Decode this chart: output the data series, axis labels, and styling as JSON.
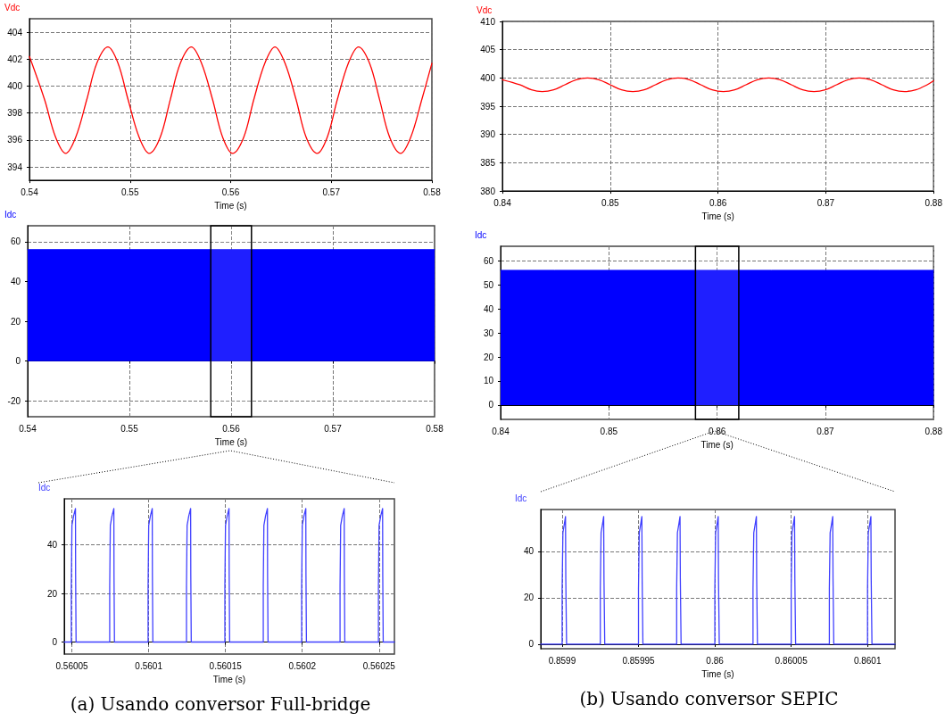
{
  "chart_data": [
    {
      "type": "line",
      "xlabel": "Time (s)",
      "legend": "top left",
      "grid": true,
      "line_style": "solid",
      "xlim": [
        0.54,
        0.58
      ],
      "xticks": [
        0.54,
        0.55,
        0.56,
        0.57,
        0.58
      ],
      "ylim": [
        393,
        405
      ],
      "yticks": [
        394,
        396,
        398,
        400,
        402,
        404
      ],
      "series": [
        {
          "name": "Vdc",
          "color": "#ff0000",
          "x": [
            0.54,
            0.5415,
            0.5426,
            0.5436,
            0.5446,
            0.5457,
            0.5467,
            0.5478,
            0.5488,
            0.5498,
            0.5509,
            0.5519,
            0.553,
            0.554,
            0.555,
            0.5561,
            0.5571,
            0.5582,
            0.5592,
            0.5602,
            0.5613,
            0.5623,
            0.5634,
            0.5644,
            0.5654,
            0.5665,
            0.5675,
            0.5686,
            0.5696,
            0.5706,
            0.5717,
            0.5727,
            0.5738,
            0.5748,
            0.5758,
            0.5769,
            0.5779,
            0.579,
            0.58
          ],
          "values": [
            402.2,
            399.0,
            396.2,
            395.0,
            396.2,
            399.0,
            401.7,
            402.9,
            401.7,
            399.0,
            396.2,
            395.0,
            396.2,
            399.0,
            401.7,
            402.9,
            401.7,
            399.0,
            396.2,
            395.0,
            396.2,
            399.0,
            401.7,
            402.9,
            401.7,
            399.0,
            396.2,
            395.0,
            396.2,
            399.0,
            401.7,
            402.9,
            401.7,
            399.0,
            396.2,
            395.0,
            396.2,
            399.0,
            401.7
          ]
        }
      ]
    },
    {
      "type": "line",
      "xlabel": "Time (s)",
      "legend": "top left",
      "grid": true,
      "line_style": "solid",
      "xlim": [
        0.84,
        0.88
      ],
      "xticks": [
        0.84,
        0.85,
        0.86,
        0.87,
        0.88
      ],
      "ylim": [
        380,
        410
      ],
      "yticks": [
        380,
        385,
        390,
        395,
        400,
        405,
        410
      ],
      "series": [
        {
          "name": "Vdc",
          "color": "#ff0000",
          "x": [
            0.84,
            0.8416,
            0.8427,
            0.8437,
            0.84475,
            0.8458,
            0.84685,
            0.8479,
            0.84895,
            0.85,
            0.85105,
            0.8521,
            0.85315,
            0.8542,
            0.85525,
            0.8563,
            0.85735,
            0.8584,
            0.85945,
            0.8605,
            0.86155,
            0.8626,
            0.86365,
            0.8647,
            0.86575,
            0.8668,
            0.86785,
            0.8689,
            0.86995,
            0.871,
            0.87205,
            0.8731,
            0.87415,
            0.8752,
            0.87625,
            0.8773,
            0.87835,
            0.8794,
            0.88
          ],
          "values": [
            399.7,
            398.8,
            397.9,
            397.6,
            397.9,
            398.8,
            399.7,
            400.0,
            399.7,
            398.8,
            397.9,
            397.6,
            397.9,
            398.8,
            399.7,
            400.0,
            399.7,
            398.8,
            397.9,
            397.6,
            397.9,
            398.8,
            399.7,
            400.0,
            399.7,
            398.8,
            397.9,
            397.6,
            397.9,
            398.8,
            399.7,
            400.0,
            399.7,
            398.8,
            397.9,
            397.6,
            397.9,
            398.8,
            399.5
          ]
        }
      ]
    },
    {
      "type": "area",
      "xlabel": "Time (s)",
      "legend": "top left",
      "grid": true,
      "xlim": [
        0.54,
        0.58
      ],
      "xticks": [
        0.54,
        0.55,
        0.56,
        0.57,
        0.58
      ],
      "ylim": [
        -28,
        68
      ],
      "yticks": [
        -20,
        0,
        20,
        40,
        60
      ],
      "bands": [
        {
          "axis": "x",
          "from": 0.558,
          "to": 0.562,
          "color": "#000000"
        }
      ],
      "series": [
        {
          "name": "Idc",
          "color": "#0000ff",
          "x": [
            0.54,
            0.545,
            0.55,
            0.555,
            0.565,
            0.57,
            0.575,
            0.58
          ],
          "values": [
            56,
            56,
            56,
            56,
            56,
            56,
            56,
            56
          ]
        }
      ]
    },
    {
      "type": "area",
      "xlabel": "Time (s)",
      "legend": "top left",
      "grid": true,
      "xlim": [
        0.84,
        0.88
      ],
      "xticks": [
        0.84,
        0.85,
        0.86,
        0.87,
        0.88
      ],
      "ylim": [
        -6,
        66
      ],
      "yticks": [
        0,
        10,
        20,
        30,
        40,
        50,
        60
      ],
      "bands": [
        {
          "axis": "x",
          "from": 0.858,
          "to": 0.862,
          "color": "#000000"
        }
      ],
      "series": [
        {
          "name": "Idc",
          "color": "#0000ff",
          "x": [
            0.84,
            0.845,
            0.85,
            0.855,
            0.865,
            0.87,
            0.875,
            0.88
          ],
          "values": [
            56,
            56,
            56,
            56,
            56,
            56,
            56,
            56
          ]
        }
      ]
    },
    {
      "type": "line",
      "xlabel": "Time (s)",
      "legend": "top left",
      "grid": true,
      "line_style": "solid",
      "xlim": [
        0.560045,
        0.56026
      ],
      "xticks": [
        0.56005,
        0.5601,
        0.56015,
        0.5602,
        0.56025
      ],
      "ylim": [
        -5,
        59
      ],
      "yticks": [
        0,
        20,
        40
      ],
      "annotations": [
        "(a) Usando conversor Full-bridge"
      ],
      "series": [
        {
          "name": "Idc",
          "color": "#4040ff",
          "x": [
            0.560045,
            0.5600496,
            0.5600496,
            0.56005,
            0.5600511,
            0.5600523,
            0.5600524,
            0.5600527,
            0.5600746,
            0.5600746,
            0.560075,
            0.5600761,
            0.5600773,
            0.5600774,
            0.5600777,
            0.5600996,
            0.5600996,
            0.5601,
            0.5601011,
            0.5601023,
            0.5601024,
            0.5601027,
            0.5601246,
            0.5601246,
            0.560125,
            0.5601261,
            0.5601273,
            0.5601274,
            0.5601277,
            0.5601496,
            0.5601496,
            0.56015,
            0.5601511,
            0.5601523,
            0.5601524,
            0.5601527,
            0.5601746,
            0.5601746,
            0.560175,
            0.5601761,
            0.5601773,
            0.5601774,
            0.5601777,
            0.5601996,
            0.5601996,
            0.5602,
            0.5602011,
            0.5602023,
            0.5602024,
            0.5602027,
            0.5602246,
            0.5602246,
            0.560225,
            0.5602261,
            0.5602273,
            0.5602274,
            0.5602277,
            0.5602496,
            0.5602496,
            0.56025,
            0.5602511,
            0.5602523,
            0.5602524,
            0.5602527,
            0.56026
          ],
          "values": [
            0,
            0,
            23,
            48,
            52,
            55,
            28,
            0,
            0,
            23,
            48,
            52,
            55,
            28,
            0,
            0,
            23,
            48,
            52,
            55,
            28,
            0,
            0,
            23,
            48,
            52,
            55,
            28,
            0,
            0,
            23,
            48,
            52,
            55,
            28,
            0,
            0,
            23,
            48,
            52,
            55,
            28,
            0,
            0,
            23,
            48,
            52,
            55,
            28,
            0,
            0,
            23,
            48,
            52,
            55,
            28,
            0,
            0,
            23,
            48,
            52,
            55,
            28,
            0,
            0
          ]
        }
      ]
    },
    {
      "type": "line",
      "xlabel": "Time (s)",
      "legend": "top left",
      "grid": true,
      "line_style": "solid",
      "xlim": [
        0.859886,
        0.860118
      ],
      "xticks": [
        0.8599,
        0.85995,
        0.86,
        0.86005,
        0.8601
      ],
      "ylim": [
        -2,
        58
      ],
      "yticks": [
        0,
        20,
        40
      ],
      "annotations": [
        "(b) Usando conversor SEPIC"
      ],
      "series": [
        {
          "name": "Idc",
          "color": "#4040ff",
          "x": [
            0.859886,
            0.8599,
            0.8599,
            0.8599005,
            0.8599015,
            0.8599022,
            0.8599024,
            0.8599029,
            0.859925,
            0.859925,
            0.8599255,
            0.8599265,
            0.8599272,
            0.8599274,
            0.8599279,
            0.85995,
            0.85995,
            0.8599505,
            0.8599515,
            0.8599522,
            0.8599524,
            0.8599529,
            0.859975,
            0.859975,
            0.8599755,
            0.8599765,
            0.8599772,
            0.8599774,
            0.8599779,
            0.86,
            0.86,
            0.8600005,
            0.8600015,
            0.8600022,
            0.8600024,
            0.8600029,
            0.860025,
            0.860025,
            0.8600255,
            0.8600265,
            0.8600272,
            0.8600274,
            0.8600279,
            0.86005,
            0.86005,
            0.8600505,
            0.8600515,
            0.8600522,
            0.8600524,
            0.8600529,
            0.860075,
            0.860075,
            0.8600755,
            0.8600765,
            0.8600772,
            0.8600774,
            0.8600779,
            0.8601,
            0.8601,
            0.8601005,
            0.8601015,
            0.8601022,
            0.8601024,
            0.8601029,
            0.860118
          ],
          "values": [
            0,
            0,
            24,
            48,
            52,
            55,
            28,
            0,
            0,
            24,
            48,
            52,
            55,
            28,
            0,
            0,
            24,
            48,
            52,
            55,
            28,
            0,
            0,
            24,
            48,
            52,
            55,
            28,
            0,
            0,
            24,
            48,
            52,
            55,
            28,
            0,
            0,
            24,
            48,
            52,
            55,
            28,
            0,
            0,
            24,
            48,
            52,
            55,
            28,
            0,
            0,
            24,
            48,
            52,
            55,
            28,
            0,
            0,
            24,
            48,
            52,
            55,
            28,
            0,
            0
          ]
        }
      ]
    }
  ]
}
